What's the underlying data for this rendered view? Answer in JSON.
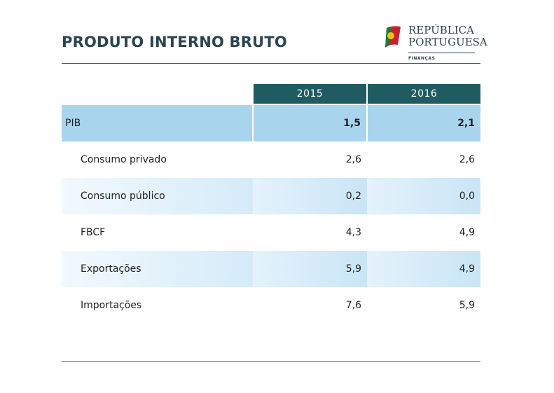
{
  "header": {
    "title": "PRODUTO INTERNO BRUTO",
    "logo": {
      "line1": "REPÚBLICA",
      "line2": "PORTUGUESA",
      "department": "FINANÇAS"
    }
  },
  "table": {
    "columns": [
      "2015",
      "2016"
    ],
    "rows": [
      [
        "PIB",
        "1,5",
        "2,1"
      ],
      [
        "Consumo privado",
        "2,6",
        "2,6"
      ],
      [
        "Consumo público",
        "0,2",
        "0,0"
      ],
      [
        "FBCF",
        "4,3",
        "4,9"
      ],
      [
        "Exportações",
        "5,9",
        "4,9"
      ],
      [
        "Importações",
        "7,6",
        "5,9"
      ]
    ]
  }
}
